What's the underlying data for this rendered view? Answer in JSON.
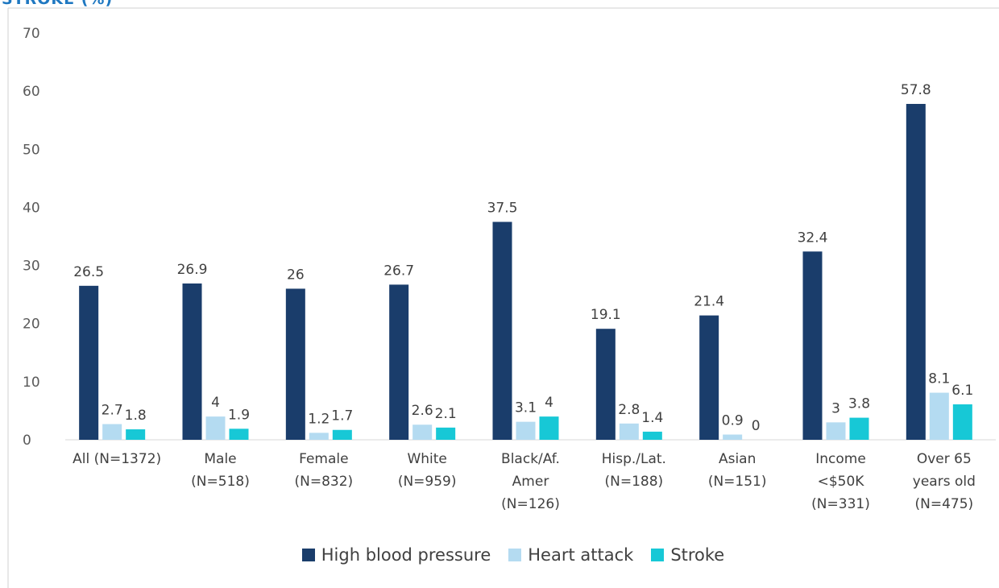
{
  "chart_data": {
    "type": "bar",
    "title": "STROKE (%)",
    "categories": [
      "All (N=1372)",
      "Male\n(N=518)",
      "Female\n(N=832)",
      "White\n(N=959)",
      "Black/Af.\nAmer\n(N=126)",
      "Hisp./Lat.\n(N=188)",
      "Asian\n(N=151)",
      "Income\n<$50K\n(N=331)",
      "Over 65\nyears old\n(N=475)"
    ],
    "series": [
      {
        "name": "High blood pressure",
        "color": "#1a3d6b",
        "values": [
          26.5,
          26.9,
          26,
          26.7,
          37.5,
          19.1,
          21.4,
          32.4,
          57.8
        ]
      },
      {
        "name": "Heart attack",
        "color": "#b4dbf1",
        "values": [
          2.7,
          4,
          1.2,
          2.6,
          3.1,
          2.8,
          0.9,
          3,
          8.1
        ]
      },
      {
        "name": "Stroke",
        "color": "#17c8d6",
        "values": [
          1.8,
          1.9,
          1.7,
          2.1,
          4,
          1.4,
          0,
          3.8,
          6.1
        ]
      }
    ],
    "ylim": [
      0,
      70
    ],
    "yticks": [
      0,
      10,
      20,
      30,
      40,
      50,
      60,
      70
    ],
    "grid": false,
    "legend": "bottom"
  }
}
